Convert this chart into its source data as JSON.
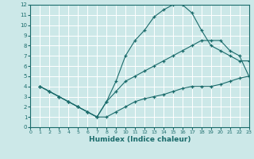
{
  "xlabel": "Humidex (Indice chaleur)",
  "bg_color": "#cce8e8",
  "line_color": "#1a6b6b",
  "grid_color": "#b8d8d8",
  "xlim": [
    0,
    23
  ],
  "ylim": [
    0,
    12
  ],
  "xticks": [
    0,
    1,
    2,
    3,
    4,
    5,
    6,
    7,
    8,
    9,
    10,
    11,
    12,
    13,
    14,
    15,
    16,
    17,
    18,
    19,
    20,
    21,
    22,
    23
  ],
  "yticks": [
    0,
    1,
    2,
    3,
    4,
    5,
    6,
    7,
    8,
    9,
    10,
    11,
    12
  ],
  "line1_x": [
    1,
    2,
    3,
    4,
    5,
    6,
    7,
    8,
    9,
    10,
    11,
    12,
    13,
    14,
    15,
    16,
    17,
    18,
    19,
    20,
    21,
    22,
    23
  ],
  "line1_y": [
    4,
    3.5,
    3,
    2.5,
    2,
    1.5,
    1,
    2.5,
    4.5,
    7,
    8.5,
    9.5,
    10.8,
    11.5,
    12,
    12,
    11.2,
    9.5,
    8.0,
    7.5,
    7.0,
    6.5,
    6.5
  ],
  "line2_x": [
    1,
    2,
    3,
    4,
    5,
    6,
    7,
    8,
    9,
    10,
    11,
    12,
    13,
    14,
    15,
    16,
    17,
    18,
    19,
    20,
    21,
    22,
    23
  ],
  "line2_y": [
    4,
    3.5,
    3,
    2.5,
    2,
    1.5,
    1,
    2.5,
    3.5,
    4.5,
    5,
    5.5,
    6,
    6.5,
    7,
    7.5,
    8,
    8.5,
    8.5,
    8.5,
    7.5,
    7.0,
    5.0
  ],
  "line3_x": [
    1,
    2,
    3,
    4,
    5,
    6,
    7,
    8,
    9,
    10,
    11,
    12,
    13,
    14,
    15,
    16,
    17,
    18,
    19,
    20,
    21,
    22,
    23
  ],
  "line3_y": [
    4,
    3.5,
    3,
    2.5,
    2,
    1.5,
    1,
    1.0,
    1.5,
    2.0,
    2.5,
    2.8,
    3.0,
    3.2,
    3.5,
    3.8,
    4.0,
    4.0,
    4.0,
    4.2,
    4.5,
    4.8,
    5.0
  ]
}
